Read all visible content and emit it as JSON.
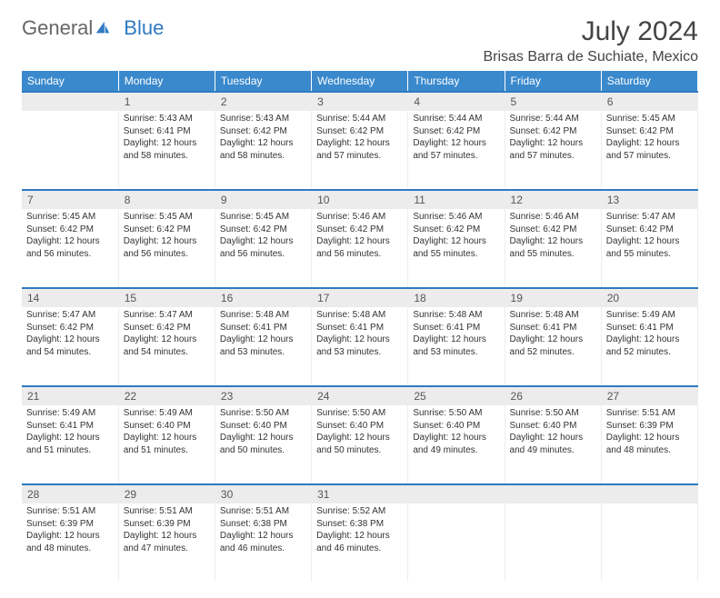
{
  "logo": {
    "part1": "General",
    "part2": "Blue"
  },
  "title": "July 2024",
  "location": "Brisas Barra de Suchiate, Mexico",
  "weekdays": [
    "Sunday",
    "Monday",
    "Tuesday",
    "Wednesday",
    "Thursday",
    "Friday",
    "Saturday"
  ],
  "colors": {
    "header_bg": "#3a89cc",
    "accent_line": "#2f7ac3",
    "daynum_bg": "#ececec",
    "text": "#333333"
  },
  "weeks": [
    {
      "nums": [
        "",
        "1",
        "2",
        "3",
        "4",
        "5",
        "6"
      ],
      "cells": [
        null,
        {
          "sunrise": "Sunrise: 5:43 AM",
          "sunset": "Sunset: 6:41 PM",
          "daylight": "Daylight: 12 hours and 58 minutes."
        },
        {
          "sunrise": "Sunrise: 5:43 AM",
          "sunset": "Sunset: 6:42 PM",
          "daylight": "Daylight: 12 hours and 58 minutes."
        },
        {
          "sunrise": "Sunrise: 5:44 AM",
          "sunset": "Sunset: 6:42 PM",
          "daylight": "Daylight: 12 hours and 57 minutes."
        },
        {
          "sunrise": "Sunrise: 5:44 AM",
          "sunset": "Sunset: 6:42 PM",
          "daylight": "Daylight: 12 hours and 57 minutes."
        },
        {
          "sunrise": "Sunrise: 5:44 AM",
          "sunset": "Sunset: 6:42 PM",
          "daylight": "Daylight: 12 hours and 57 minutes."
        },
        {
          "sunrise": "Sunrise: 5:45 AM",
          "sunset": "Sunset: 6:42 PM",
          "daylight": "Daylight: 12 hours and 57 minutes."
        }
      ]
    },
    {
      "nums": [
        "7",
        "8",
        "9",
        "10",
        "11",
        "12",
        "13"
      ],
      "cells": [
        {
          "sunrise": "Sunrise: 5:45 AM",
          "sunset": "Sunset: 6:42 PM",
          "daylight": "Daylight: 12 hours and 56 minutes."
        },
        {
          "sunrise": "Sunrise: 5:45 AM",
          "sunset": "Sunset: 6:42 PM",
          "daylight": "Daylight: 12 hours and 56 minutes."
        },
        {
          "sunrise": "Sunrise: 5:45 AM",
          "sunset": "Sunset: 6:42 PM",
          "daylight": "Daylight: 12 hours and 56 minutes."
        },
        {
          "sunrise": "Sunrise: 5:46 AM",
          "sunset": "Sunset: 6:42 PM",
          "daylight": "Daylight: 12 hours and 56 minutes."
        },
        {
          "sunrise": "Sunrise: 5:46 AM",
          "sunset": "Sunset: 6:42 PM",
          "daylight": "Daylight: 12 hours and 55 minutes."
        },
        {
          "sunrise": "Sunrise: 5:46 AM",
          "sunset": "Sunset: 6:42 PM",
          "daylight": "Daylight: 12 hours and 55 minutes."
        },
        {
          "sunrise": "Sunrise: 5:47 AM",
          "sunset": "Sunset: 6:42 PM",
          "daylight": "Daylight: 12 hours and 55 minutes."
        }
      ]
    },
    {
      "nums": [
        "14",
        "15",
        "16",
        "17",
        "18",
        "19",
        "20"
      ],
      "cells": [
        {
          "sunrise": "Sunrise: 5:47 AM",
          "sunset": "Sunset: 6:42 PM",
          "daylight": "Daylight: 12 hours and 54 minutes."
        },
        {
          "sunrise": "Sunrise: 5:47 AM",
          "sunset": "Sunset: 6:42 PM",
          "daylight": "Daylight: 12 hours and 54 minutes."
        },
        {
          "sunrise": "Sunrise: 5:48 AM",
          "sunset": "Sunset: 6:41 PM",
          "daylight": "Daylight: 12 hours and 53 minutes."
        },
        {
          "sunrise": "Sunrise: 5:48 AM",
          "sunset": "Sunset: 6:41 PM",
          "daylight": "Daylight: 12 hours and 53 minutes."
        },
        {
          "sunrise": "Sunrise: 5:48 AM",
          "sunset": "Sunset: 6:41 PM",
          "daylight": "Daylight: 12 hours and 53 minutes."
        },
        {
          "sunrise": "Sunrise: 5:48 AM",
          "sunset": "Sunset: 6:41 PM",
          "daylight": "Daylight: 12 hours and 52 minutes."
        },
        {
          "sunrise": "Sunrise: 5:49 AM",
          "sunset": "Sunset: 6:41 PM",
          "daylight": "Daylight: 12 hours and 52 minutes."
        }
      ]
    },
    {
      "nums": [
        "21",
        "22",
        "23",
        "24",
        "25",
        "26",
        "27"
      ],
      "cells": [
        {
          "sunrise": "Sunrise: 5:49 AM",
          "sunset": "Sunset: 6:41 PM",
          "daylight": "Daylight: 12 hours and 51 minutes."
        },
        {
          "sunrise": "Sunrise: 5:49 AM",
          "sunset": "Sunset: 6:40 PM",
          "daylight": "Daylight: 12 hours and 51 minutes."
        },
        {
          "sunrise": "Sunrise: 5:50 AM",
          "sunset": "Sunset: 6:40 PM",
          "daylight": "Daylight: 12 hours and 50 minutes."
        },
        {
          "sunrise": "Sunrise: 5:50 AM",
          "sunset": "Sunset: 6:40 PM",
          "daylight": "Daylight: 12 hours and 50 minutes."
        },
        {
          "sunrise": "Sunrise: 5:50 AM",
          "sunset": "Sunset: 6:40 PM",
          "daylight": "Daylight: 12 hours and 49 minutes."
        },
        {
          "sunrise": "Sunrise: 5:50 AM",
          "sunset": "Sunset: 6:40 PM",
          "daylight": "Daylight: 12 hours and 49 minutes."
        },
        {
          "sunrise": "Sunrise: 5:51 AM",
          "sunset": "Sunset: 6:39 PM",
          "daylight": "Daylight: 12 hours and 48 minutes."
        }
      ]
    },
    {
      "nums": [
        "28",
        "29",
        "30",
        "31",
        "",
        "",
        ""
      ],
      "cells": [
        {
          "sunrise": "Sunrise: 5:51 AM",
          "sunset": "Sunset: 6:39 PM",
          "daylight": "Daylight: 12 hours and 48 minutes."
        },
        {
          "sunrise": "Sunrise: 5:51 AM",
          "sunset": "Sunset: 6:39 PM",
          "daylight": "Daylight: 12 hours and 47 minutes."
        },
        {
          "sunrise": "Sunrise: 5:51 AM",
          "sunset": "Sunset: 6:38 PM",
          "daylight": "Daylight: 12 hours and 46 minutes."
        },
        {
          "sunrise": "Sunrise: 5:52 AM",
          "sunset": "Sunset: 6:38 PM",
          "daylight": "Daylight: 12 hours and 46 minutes."
        },
        null,
        null,
        null
      ]
    }
  ]
}
